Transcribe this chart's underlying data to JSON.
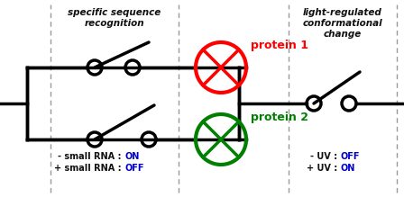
{
  "figsize": [
    4.48,
    2.19
  ],
  "dpi": 100,
  "bg_color": "#ffffff",
  "left_label_line1": "specific sequence",
  "left_label_line2": "recognition",
  "right_label_line1": "light-regulated",
  "right_label_line2": "conformational",
  "right_label_line3": "change",
  "protein1_label": "protein 1",
  "protein1_color": "#ff0000",
  "protein2_label": "protein 2",
  "protein2_color": "#008000",
  "bottom_left_line1_pre": "- small RNA : ",
  "bottom_left_line1_val": "ON",
  "bottom_left_line2_pre": "+ small RNA : ",
  "bottom_left_line2_val": "OFF",
  "bottom_left_val_color": "#0000cc",
  "bottom_right_line1_pre": "- UV : ",
  "bottom_right_line1_val": "OFF",
  "bottom_right_line2_pre": "+ UV : ",
  "bottom_right_line2_val": "ON",
  "bottom_right_val_color": "#0000cc",
  "dashed_color": "#999999",
  "circuit_color": "#000000",
  "lw": 2.0
}
